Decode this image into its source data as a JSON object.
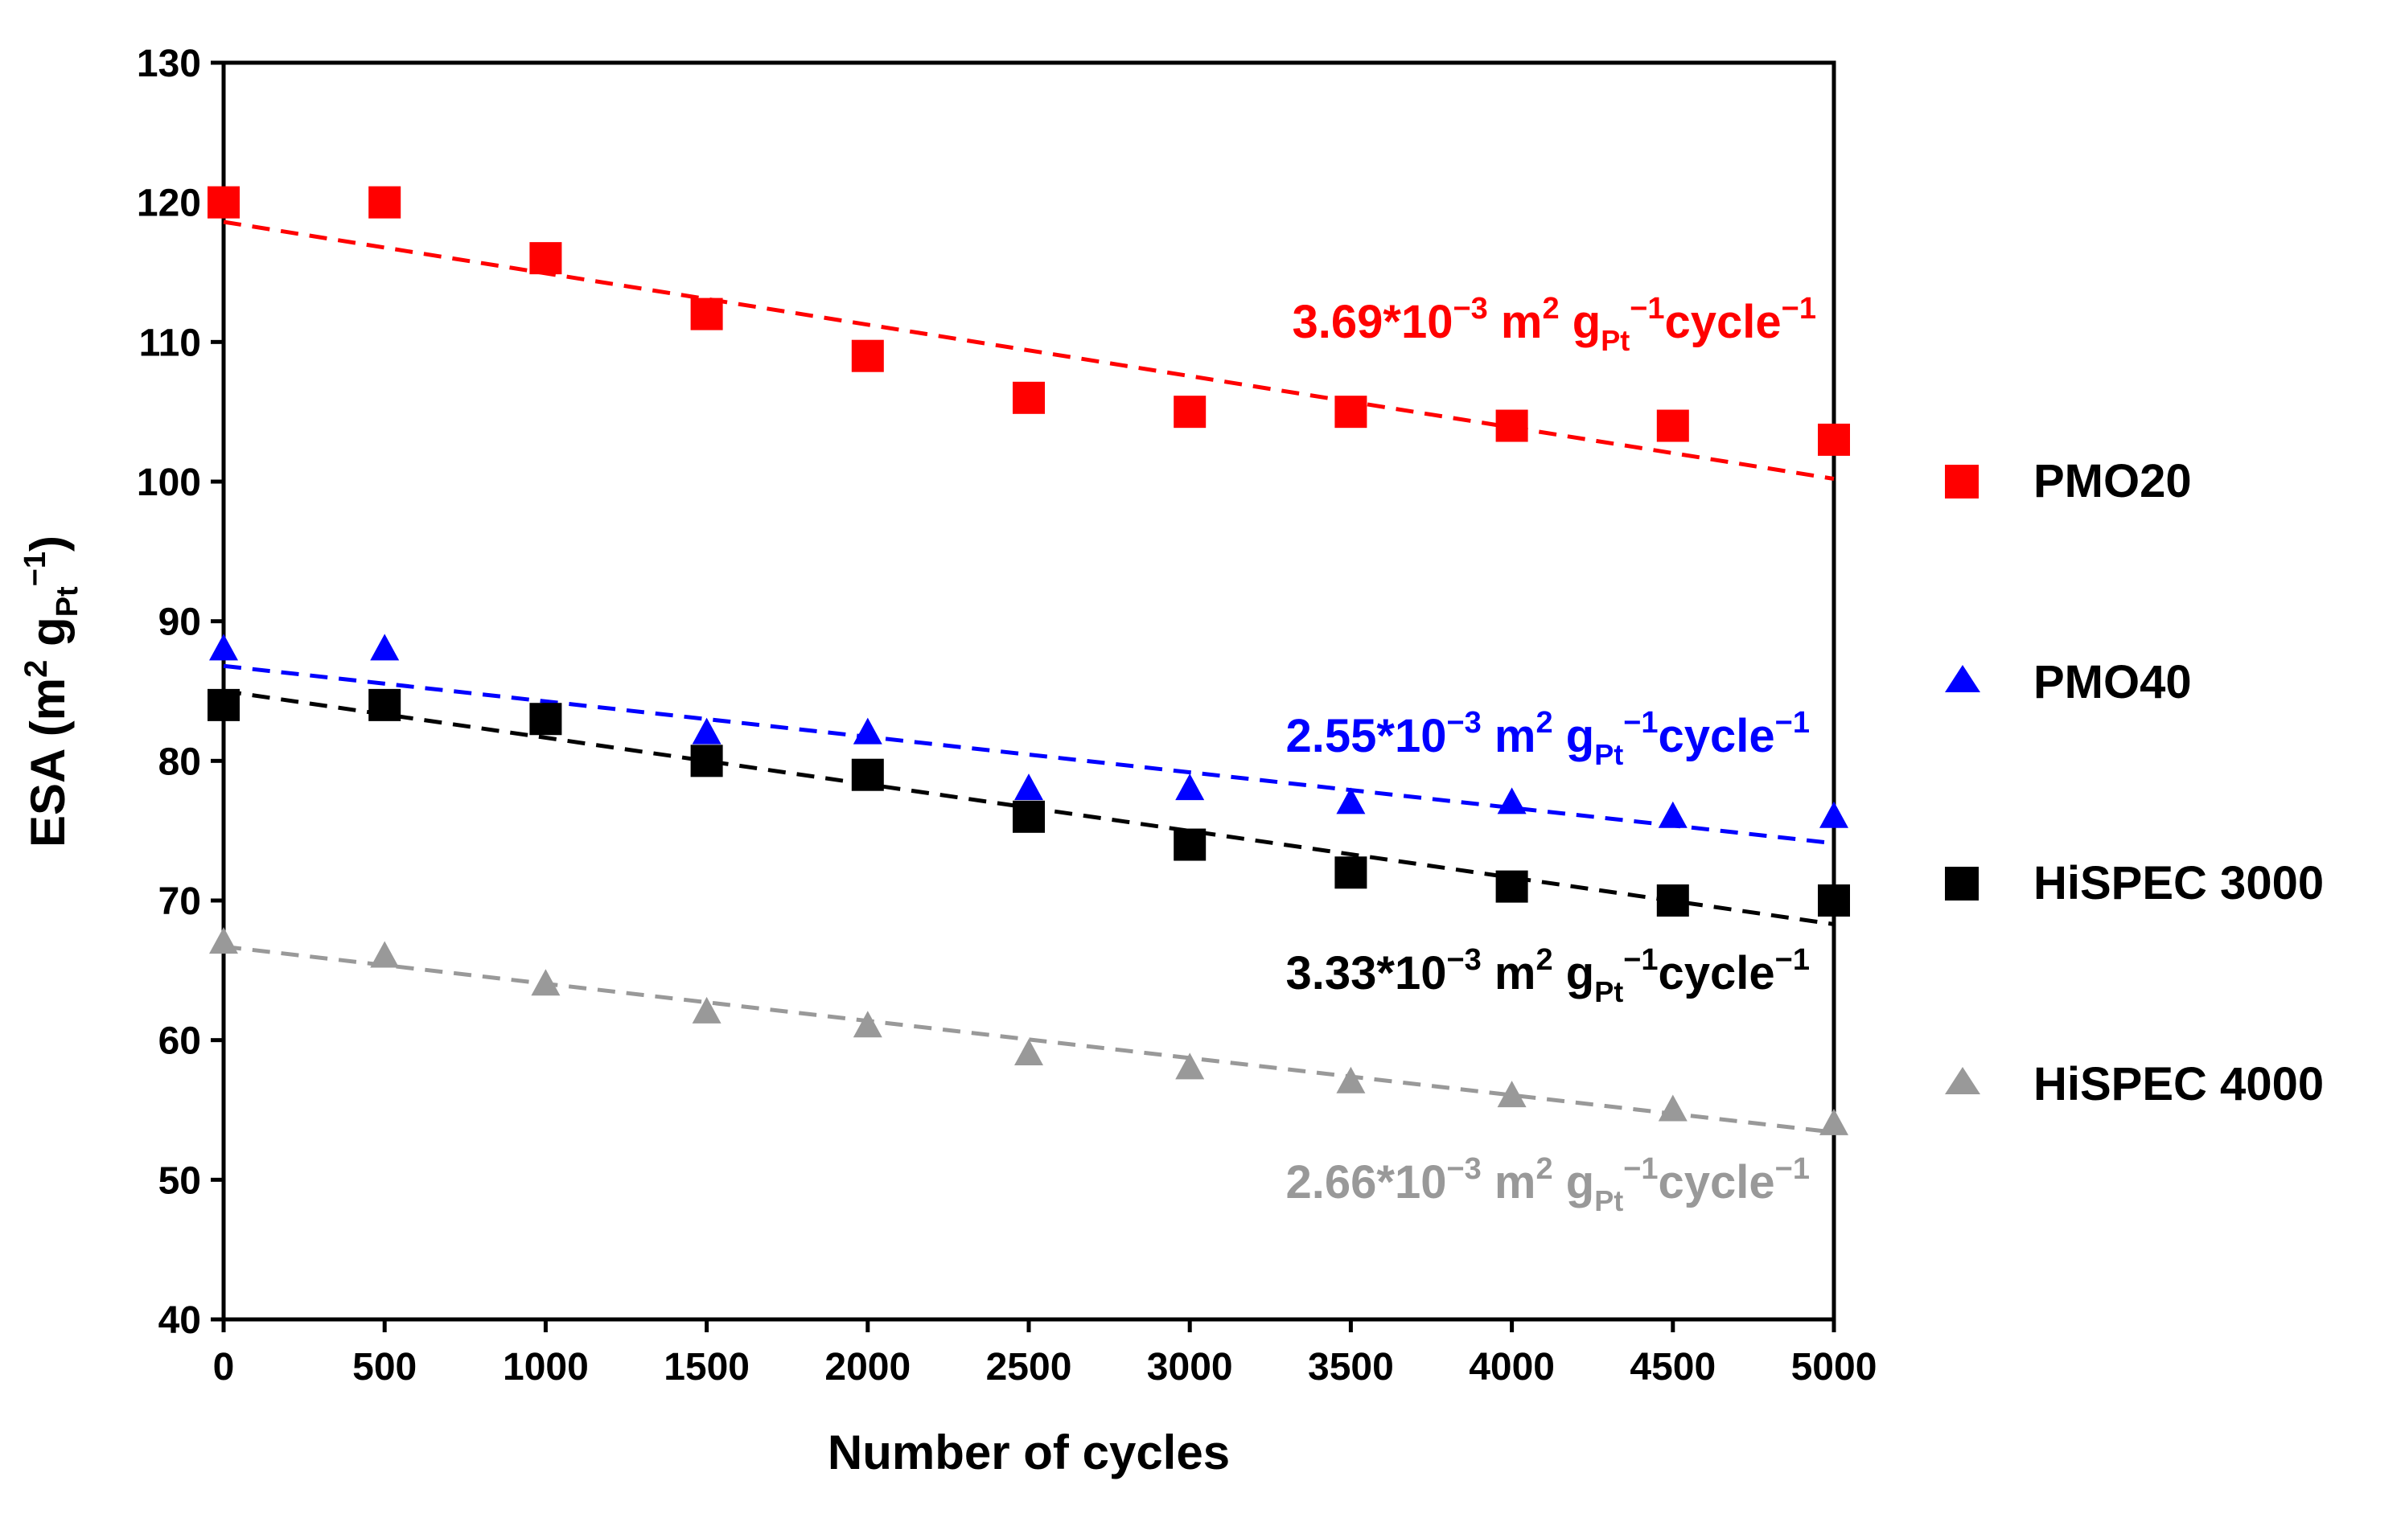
{
  "chart_data": {
    "type": "scatter",
    "xlabel": "Number of cycles",
    "ylabel": {
      "main": "ESA (m",
      "sup1": "2",
      "mid": " g",
      "sub": "Pt",
      "sup2": "−1",
      "end": ")"
    },
    "xlim": [
      0,
      5000
    ],
    "ylim": [
      40,
      130
    ],
    "xticks": [
      "0",
      "500",
      "1000",
      "1500",
      "2000",
      "2500",
      "3000",
      "3500",
      "4000",
      "4500",
      "5000"
    ],
    "yticks": [
      "40",
      "50",
      "60",
      "70",
      "80",
      "90",
      "100",
      "110",
      "120",
      "130"
    ],
    "x": [
      0,
      500,
      1000,
      1500,
      2000,
      2500,
      3000,
      3500,
      4000,
      4500,
      5000
    ],
    "legend_position": "right",
    "series": [
      {
        "name": "PMO20",
        "color": "#ff0000",
        "marker": "square",
        "values": [
          120,
          120,
          116,
          112,
          109,
          106,
          105,
          105,
          104,
          104,
          103
        ],
        "fit": {
          "y0": 118.6,
          "y1": 100.2
        },
        "annotation": {
          "value": "3.69*10",
          "exp": "−3",
          "m": " m",
          "m_sup": "2",
          "g": " g",
          "g_sub": "Pt",
          "g_sup": "−1",
          "cyc": "cycle",
          "cyc_sup": "−1"
        }
      },
      {
        "name": "PMO40",
        "color": "#0000ff",
        "marker": "triangle",
        "values": [
          88,
          88,
          83,
          82,
          82,
          78,
          78,
          77,
          77,
          76,
          76
        ],
        "fit": {
          "y0": 86.8,
          "y1": 74.1
        },
        "annotation": {
          "value": "2.55*10",
          "exp": "−3",
          "m": " m",
          "m_sup": "2",
          "g": " g",
          "g_sub": "Pt",
          "g_sup": "−1",
          "cyc": "cycle",
          "cyc_sup": "−1"
        }
      },
      {
        "name": "HiSPEC 3000",
        "color": "#000000",
        "marker": "square",
        "values": [
          84,
          84,
          83,
          80,
          79,
          76,
          74,
          72,
          71,
          70,
          70
        ],
        "fit": {
          "y0": 85.0,
          "y1": 68.3
        },
        "annotation": {
          "value": "3.33*10",
          "exp": "−3",
          "m": " m",
          "m_sup": "2",
          "g": " g",
          "g_sub": "Pt",
          "g_sup": "−1",
          "cyc": "cycle",
          "cyc_sup": "−1"
        }
      },
      {
        "name": "HiSPEC 4000",
        "color": "#999999",
        "marker": "triangle",
        "values": [
          67,
          66,
          64,
          62,
          61,
          59,
          58,
          57,
          56,
          55,
          54
        ],
        "fit": {
          "y0": 66.7,
          "y1": 53.4
        },
        "annotation": {
          "value": "2.66*10",
          "exp": "−3",
          "m": " m",
          "m_sup": "2",
          "g": " g",
          "g_sub": "Pt",
          "g_sup": "−1",
          "cyc": "cycle",
          "cyc_sup": "−1"
        }
      }
    ]
  }
}
